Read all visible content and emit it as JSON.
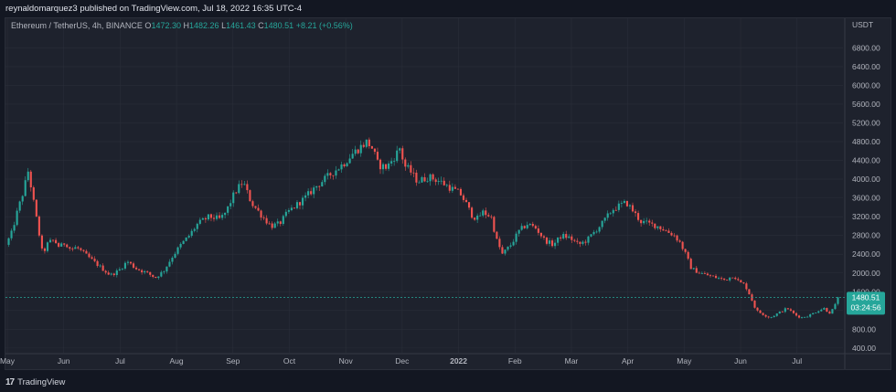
{
  "header": {
    "publisher_text": "reynaldomarquez3 published on TradingView.com, Jul 18, 2022 16:35 UTC-4"
  },
  "legend": {
    "symbol": "Ethereum / TetherUS, 4h, BINANCE",
    "o_label": "O",
    "o_value": "1472.30",
    "h_label": "H",
    "h_value": "1482.26",
    "l_label": "L",
    "l_value": "1461.43",
    "c_label": "C",
    "c_value": "1480.51",
    "change": "+8.21 (+0.56%)"
  },
  "price_tag": {
    "price": "1480.51",
    "countdown": "03:24:56"
  },
  "footer": {
    "logo_text": "TradingView"
  },
  "colors": {
    "up": "#26a69a",
    "down": "#ef5350",
    "background": "#1e222d",
    "grid": "#2a2e39",
    "text": "#b2b5be"
  },
  "chart_data": {
    "type": "candlestick",
    "title": "Ethereum / TetherUS, 4h, BINANCE",
    "currency_label": "USDT",
    "y_ticks": [
      400,
      800,
      1200,
      1600,
      2000,
      2400,
      2800,
      3200,
      3600,
      4000,
      4400,
      4800,
      5200,
      5600,
      6000,
      6400,
      6800
    ],
    "y_tick_labels": [
      "400.00",
      "800.00",
      "1200.00",
      "1600.00",
      "2000.00",
      "2400.00",
      "2800.00",
      "3200.00",
      "3600.00",
      "4000.00",
      "4400.00",
      "4800.00",
      "5200.00",
      "5600.00",
      "6000.00",
      "6400.00",
      "6800.00"
    ],
    "ylim": [
      300,
      7100
    ],
    "x_labels": [
      "May",
      "Jun",
      "Jul",
      "Aug",
      "Sep",
      "Oct",
      "Nov",
      "Dec",
      "2022",
      "Feb",
      "Mar",
      "Apr",
      "May",
      "Jun",
      "Jul"
    ],
    "x_label_positions": [
      0,
      1,
      2,
      3,
      4,
      5,
      6,
      7,
      8,
      9,
      10,
      11,
      12,
      13,
      14
    ],
    "x_range": [
      0,
      14.75
    ],
    "last_price": 1480.51,
    "price_path": [
      [
        0.0,
        2600
      ],
      [
        0.1,
        2850
      ],
      [
        0.2,
        3300
      ],
      [
        0.3,
        3700
      ],
      [
        0.4,
        4200
      ],
      [
        0.45,
        3800
      ],
      [
        0.55,
        3100
      ],
      [
        0.65,
        2400
      ],
      [
        0.75,
        2650
      ],
      [
        0.85,
        2700
      ],
      [
        0.95,
        2550
      ],
      [
        1.05,
        2650
      ],
      [
        1.15,
        2500
      ],
      [
        1.25,
        2550
      ],
      [
        1.35,
        2450
      ],
      [
        1.5,
        2300
      ],
      [
        1.65,
        2150
      ],
      [
        1.85,
        1950
      ],
      [
        2.0,
        2050
      ],
      [
        2.15,
        2250
      ],
      [
        2.3,
        2100
      ],
      [
        2.5,
        2000
      ],
      [
        2.65,
        1900
      ],
      [
        2.8,
        2050
      ],
      [
        2.95,
        2350
      ],
      [
        3.1,
        2600
      ],
      [
        3.25,
        2800
      ],
      [
        3.4,
        3050
      ],
      [
        3.6,
        3200
      ],
      [
        3.8,
        3150
      ],
      [
        3.9,
        3300
      ],
      [
        4.05,
        3700
      ],
      [
        4.2,
        3950
      ],
      [
        4.35,
        3500
      ],
      [
        4.55,
        3200
      ],
      [
        4.7,
        3000
      ],
      [
        4.85,
        3050
      ],
      [
        5.0,
        3300
      ],
      [
        5.15,
        3450
      ],
      [
        5.3,
        3600
      ],
      [
        5.5,
        3850
      ],
      [
        5.7,
        4050
      ],
      [
        5.85,
        4200
      ],
      [
        6.0,
        4350
      ],
      [
        6.15,
        4550
      ],
      [
        6.3,
        4700
      ],
      [
        6.4,
        4800
      ],
      [
        6.5,
        4650
      ],
      [
        6.6,
        4300
      ],
      [
        6.75,
        4250
      ],
      [
        6.9,
        4500
      ],
      [
        7.0,
        4700
      ],
      [
        7.05,
        4300
      ],
      [
        7.15,
        4200
      ],
      [
        7.3,
        3950
      ],
      [
        7.5,
        4050
      ],
      [
        7.7,
        3950
      ],
      [
        7.9,
        3800
      ],
      [
        8.05,
        3700
      ],
      [
        8.15,
        3500
      ],
      [
        8.25,
        3250
      ],
      [
        8.35,
        3150
      ],
      [
        8.45,
        3300
      ],
      [
        8.6,
        3200
      ],
      [
        8.7,
        2700
      ],
      [
        8.8,
        2400
      ],
      [
        8.95,
        2600
      ],
      [
        9.1,
        2900
      ],
      [
        9.25,
        3050
      ],
      [
        9.4,
        2950
      ],
      [
        9.55,
        2700
      ],
      [
        9.7,
        2600
      ],
      [
        9.85,
        2800
      ],
      [
        10.0,
        2750
      ],
      [
        10.15,
        2600
      ],
      [
        10.3,
        2700
      ],
      [
        10.45,
        2900
      ],
      [
        10.6,
        3100
      ],
      [
        10.75,
        3350
      ],
      [
        10.9,
        3450
      ],
      [
        11.0,
        3500
      ],
      [
        11.1,
        3350
      ],
      [
        11.25,
        3100
      ],
      [
        11.4,
        3050
      ],
      [
        11.55,
        3000
      ],
      [
        11.7,
        2900
      ],
      [
        11.85,
        2800
      ],
      [
        11.95,
        2650
      ],
      [
        12.05,
        2400
      ],
      [
        12.15,
        2100
      ],
      [
        12.3,
        2000
      ],
      [
        12.45,
        1950
      ],
      [
        12.6,
        1900
      ],
      [
        12.75,
        1850
      ],
      [
        12.9,
        1950
      ],
      [
        13.0,
        1800
      ],
      [
        13.1,
        1750
      ],
      [
        13.2,
        1500
      ],
      [
        13.3,
        1200
      ],
      [
        13.45,
        1100
      ],
      [
        13.55,
        1050
      ],
      [
        13.7,
        1150
      ],
      [
        13.85,
        1250
      ],
      [
        14.0,
        1100
      ],
      [
        14.1,
        1050
      ],
      [
        14.25,
        1100
      ],
      [
        14.4,
        1200
      ],
      [
        14.5,
        1250
      ],
      [
        14.6,
        1150
      ],
      [
        14.68,
        1250
      ],
      [
        14.75,
        1480
      ]
    ]
  }
}
